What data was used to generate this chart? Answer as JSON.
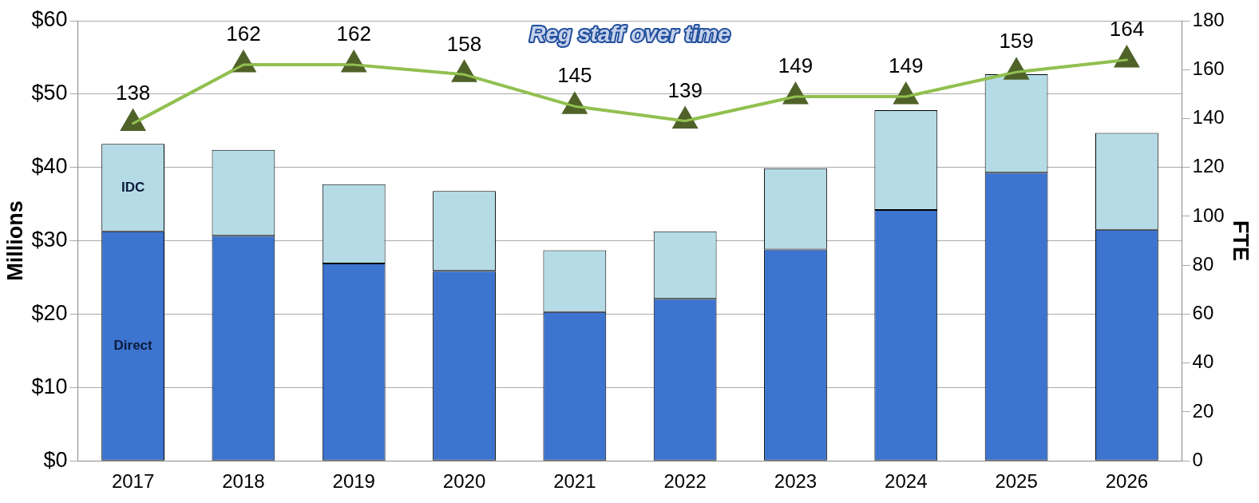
{
  "chart_data": {
    "type": "bar",
    "title": "Reg staff over time",
    "ylabel": "Millions",
    "y2label": "FTE",
    "categories": [
      "2017",
      "2018",
      "2019",
      "2020",
      "2021",
      "2022",
      "2023",
      "2024",
      "2025",
      "2026"
    ],
    "stacked": true,
    "series": [
      {
        "name": "Direct",
        "color": "#3c74cf",
        "values": [
          31.3,
          30.7,
          26.9,
          25.9,
          20.3,
          22.1,
          28.8,
          34.2,
          39.3,
          31.5
        ]
      },
      {
        "name": "IDC",
        "color": "#b5dce6",
        "values": [
          11.9,
          11.7,
          10.8,
          10.9,
          8.4,
          9.2,
          11.1,
          13.6,
          13.4,
          13.2
        ]
      },
      {
        "type": "line",
        "axis": "y2",
        "color": "#92c050",
        "marker": "triangle",
        "values": [
          138,
          162,
          162,
          158,
          145,
          139,
          149,
          149,
          159,
          164
        ],
        "value_labels": [
          "138",
          "162",
          "162",
          "158",
          "145",
          "139",
          "149",
          "149",
          "159",
          "164"
        ]
      }
    ],
    "ylim": [
      0,
      60
    ],
    "yticks": [
      {
        "value": 0,
        "label": "$0"
      },
      {
        "value": 10,
        "label": "$10"
      },
      {
        "value": 20,
        "label": "$20"
      },
      {
        "value": 30,
        "label": "$30"
      },
      {
        "value": 40,
        "label": "$40"
      },
      {
        "value": 50,
        "label": "$50"
      },
      {
        "value": 60,
        "label": "$60"
      }
    ],
    "y2lim": [
      0,
      180
    ],
    "y2ticks": [
      0,
      20,
      40,
      60,
      80,
      100,
      120,
      140,
      160,
      180
    ],
    "grid": "y",
    "legend": false
  }
}
